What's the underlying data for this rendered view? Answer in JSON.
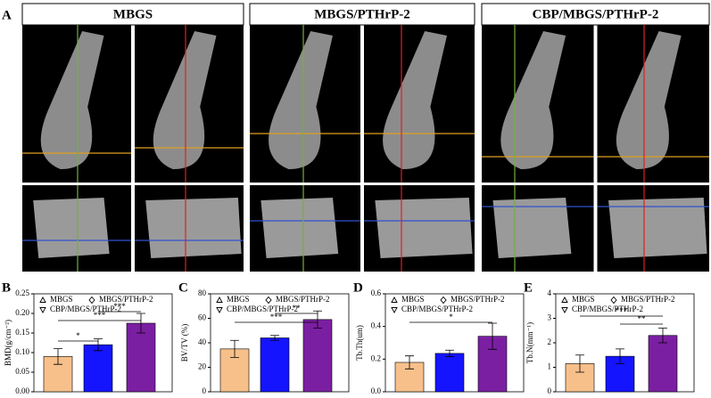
{
  "figure_label": "A",
  "panels": [
    {
      "title": "MBGS"
    },
    {
      "title": "MBGS/PTHrP-2"
    },
    {
      "title": "CBP/MBGS/PTHrP-2"
    }
  ],
  "chart_data": [
    {
      "type": "bar",
      "panel_label": "B",
      "y_label": "BMD(g/cm⁻²)",
      "ylim": [
        0,
        0.25
      ],
      "yticks": [
        {
          "value": 0,
          "label": "0.00"
        },
        {
          "value": 0.05,
          "label": "0.05"
        },
        {
          "value": 0.1,
          "label": "0.10"
        },
        {
          "value": 0.15,
          "label": "0.15"
        },
        {
          "value": 0.2,
          "label": "0.20"
        },
        {
          "value": 0.25,
          "label": "0.25"
        }
      ],
      "series": [
        {
          "name": "MBGS",
          "color": "#f7c08b",
          "values": [
            0.09
          ],
          "errors": [
            0.02
          ]
        },
        {
          "name": "MBGS/PTHrP-2",
          "color": "#1414ff",
          "values": [
            0.12
          ],
          "errors": [
            0.015
          ]
        },
        {
          "name": "CBP/MBGS/PTHrP-2",
          "color": "#7b1fa2",
          "values": [
            0.175
          ],
          "errors": [
            0.025
          ]
        }
      ],
      "annotations": [
        "*",
        "***",
        "***"
      ]
    },
    {
      "type": "bar",
      "panel_label": "C",
      "y_label": "BV/TV (%)",
      "ylim": [
        0,
        80
      ],
      "yticks": [
        0,
        20,
        40,
        60,
        80
      ],
      "series": [
        {
          "name": "MBGS",
          "color": "#f7c08b",
          "values": [
            35
          ],
          "errors": [
            7
          ]
        },
        {
          "name": "MBGS/PTHrP-2",
          "color": "#1414ff",
          "values": [
            44
          ],
          "errors": [
            2
          ]
        },
        {
          "name": "CBP/MBGS/PTHrP-2",
          "color": "#7b1fa2",
          "values": [
            59
          ],
          "errors": [
            7
          ]
        }
      ],
      "annotations": [
        "***",
        "**"
      ]
    },
    {
      "type": "bar",
      "panel_label": "D",
      "y_label": "Tb.Th(um)",
      "ylim": [
        0,
        0.6
      ],
      "yticks": [
        {
          "value": 0,
          "label": "0.0"
        },
        0.2,
        0.4,
        0.6
      ],
      "series": [
        {
          "name": "MBGS",
          "color": "#f7c08b",
          "values": [
            0.18
          ],
          "errors": [
            0.04
          ]
        },
        {
          "name": "MBGS/PTHrP-2",
          "color": "#1414ff",
          "values": [
            0.235
          ],
          "errors": [
            0.02
          ]
        },
        {
          "name": "CBP/MBGS/PTHrP-2",
          "color": "#7b1fa2",
          "values": [
            0.34
          ],
          "errors": [
            0.08
          ]
        }
      ],
      "annotations": [
        "*"
      ]
    },
    {
      "type": "bar",
      "panel_label": "E",
      "y_label": "Tb.N(mm⁻¹)",
      "ylim": [
        0,
        4
      ],
      "yticks": [
        0,
        1,
        2,
        3,
        4
      ],
      "series": [
        {
          "name": "MBGS",
          "color": "#f7c08b",
          "values": [
            1.15
          ],
          "errors": [
            0.35
          ]
        },
        {
          "name": "MBGS/PTHrP-2",
          "color": "#1414ff",
          "values": [
            1.45
          ],
          "errors": [
            0.3
          ]
        },
        {
          "name": "CBP/MBGS/PTHrP-2",
          "color": "#7b1fa2",
          "values": [
            2.3
          ],
          "errors": [
            0.3
          ]
        }
      ],
      "annotations": [
        "***",
        "**"
      ]
    }
  ]
}
